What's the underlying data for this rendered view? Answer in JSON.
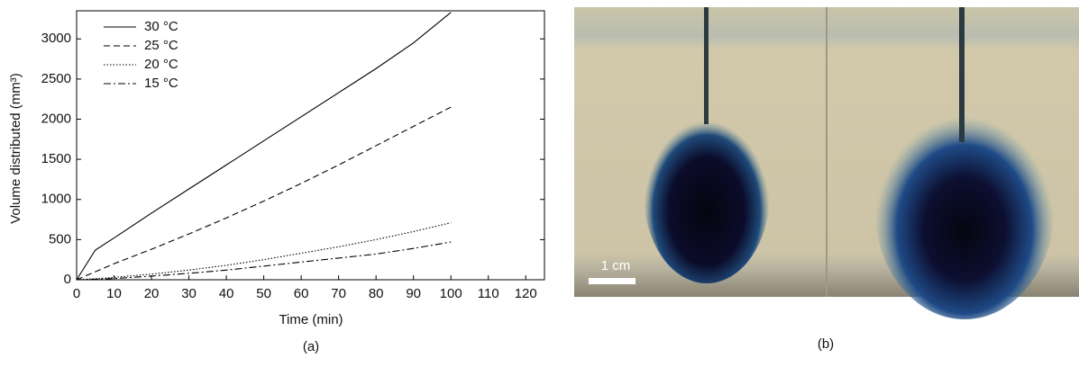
{
  "chart_data": {
    "type": "line",
    "x_label": "Time (min)",
    "y_label": "Volume distributed (mm³)",
    "x": [
      0,
      5,
      10,
      20,
      30,
      40,
      50,
      60,
      70,
      80,
      90,
      100
    ],
    "series": [
      {
        "name": "30 °C",
        "color": "#000000",
        "linestyle": "solid",
        "values": [
          0,
          370,
          520,
          830,
          1130,
          1430,
          1730,
          2030,
          2330,
          2630,
          2950,
          3330
        ]
      },
      {
        "name": "25 °C",
        "color": "#000000",
        "linestyle": "dashed",
        "values": [
          0,
          100,
          200,
          380,
          570,
          770,
          980,
          1200,
          1430,
          1670,
          1910,
          2150
        ]
      },
      {
        "name": "20 °C",
        "color": "#000000",
        "linestyle": "dotted",
        "values": [
          0,
          12,
          30,
          70,
          120,
          180,
          250,
          330,
          410,
          500,
          600,
          710
        ]
      },
      {
        "name": "15 °C",
        "color": "#000000",
        "linestyle": "dashdot",
        "values": [
          0,
          6,
          15,
          45,
          80,
          120,
          170,
          220,
          270,
          320,
          390,
          470
        ]
      }
    ],
    "xlim": [
      0,
      125
    ],
    "ylim": [
      0,
      3350
    ],
    "xticks": [
      0,
      10,
      20,
      30,
      40,
      50,
      60,
      70,
      80,
      90,
      100,
      110,
      120
    ],
    "yticks": [
      0,
      500,
      1000,
      1500,
      2000,
      2500,
      3000
    ],
    "legend": "upper left",
    "grid": false
  },
  "photo": {
    "scale_label": "1 cm"
  },
  "panel_labels": [
    "(a)",
    "(b)"
  ]
}
